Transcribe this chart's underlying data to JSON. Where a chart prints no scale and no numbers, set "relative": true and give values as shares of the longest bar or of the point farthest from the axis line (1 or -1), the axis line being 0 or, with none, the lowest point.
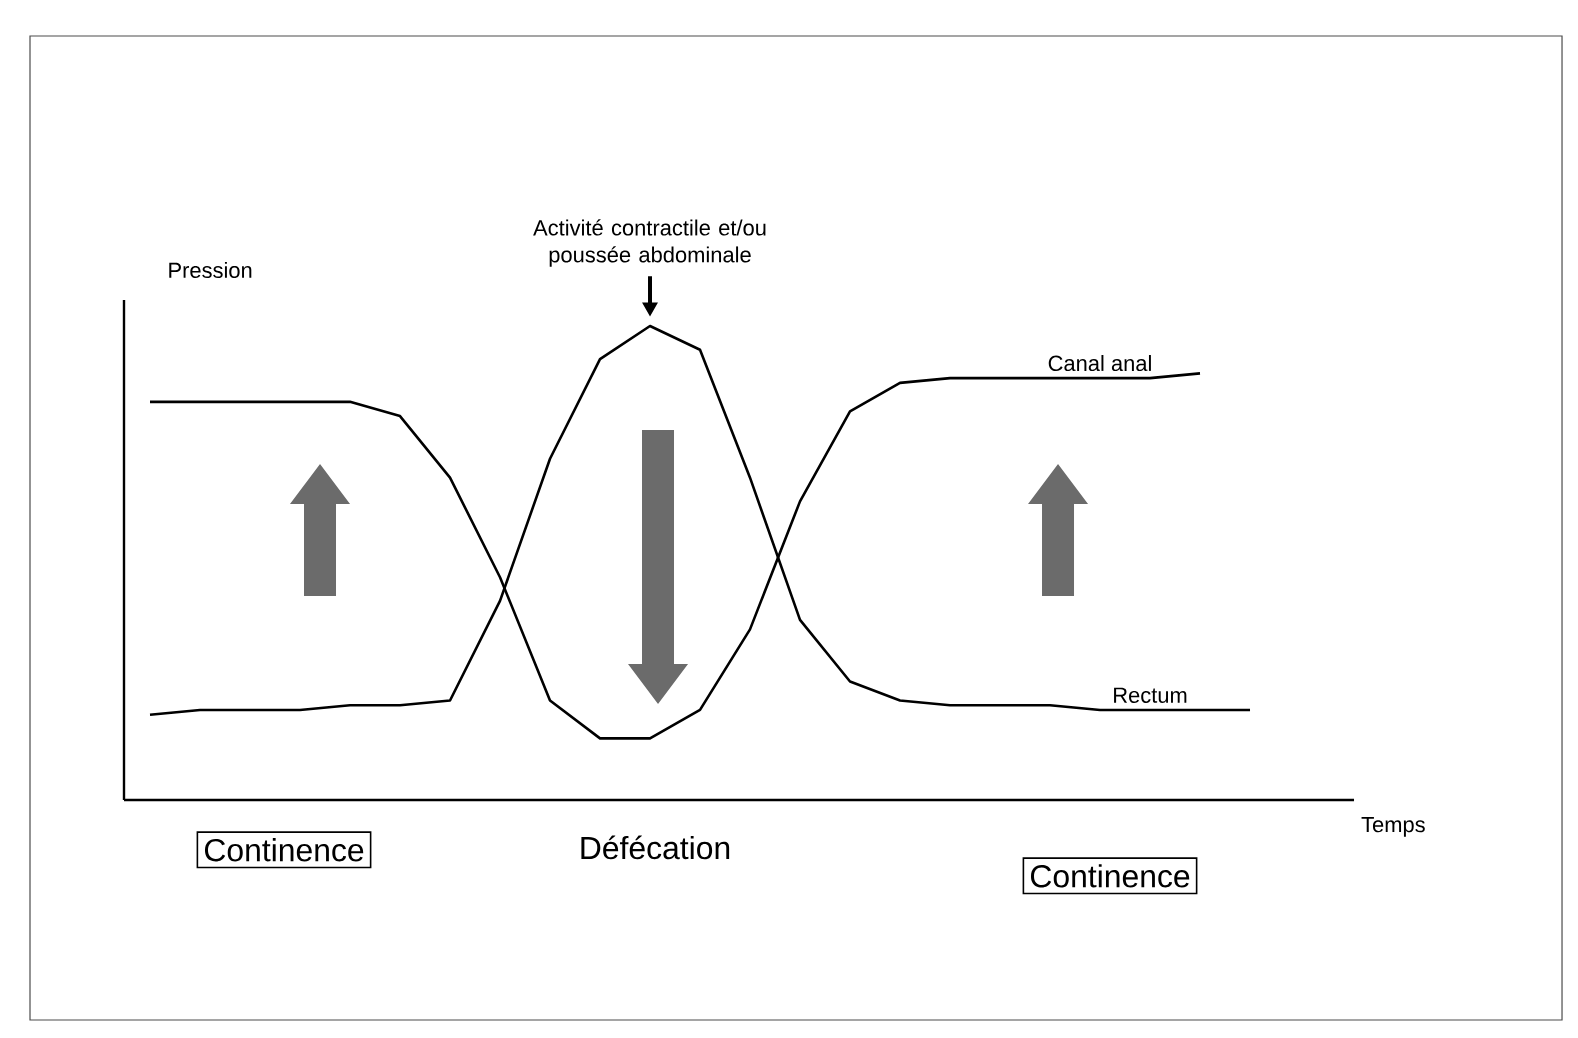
{
  "chart_data": {
    "type": "line",
    "relative": true,
    "xlabel": "Temps",
    "ylabel": "Pression",
    "categories": [
      null,
      null,
      null,
      null,
      null,
      null,
      null,
      null,
      null,
      null,
      null,
      null,
      null,
      null,
      null,
      null,
      null,
      null,
      null,
      null,
      null,
      null,
      null
    ],
    "series": [
      {
        "name": "Canal anal",
        "color": "#000000",
        "values": [
          0.84,
          0.84,
          0.84,
          0.84,
          0.84,
          0.81,
          0.68,
          0.47,
          0.21,
          0.13,
          0.13,
          0.19,
          0.36,
          0.63,
          0.82,
          0.88,
          0.89,
          0.89,
          0.89,
          0.89,
          0.89,
          0.9,
          null
        ]
      },
      {
        "name": "Rectum",
        "color": "#000000",
        "values": [
          0.18,
          0.19,
          0.19,
          0.19,
          0.2,
          0.2,
          0.21,
          0.42,
          0.72,
          0.93,
          1,
          0.95,
          0.68,
          0.38,
          0.25,
          0.21,
          0.2,
          0.2,
          0.2,
          0.19,
          0.19,
          0.19,
          0.19
        ]
      }
    ],
    "annotations": [
      "Activité contractile et/ou poussée abdominale",
      "Continence",
      "Défécation",
      "Continence"
    ]
  }
}
